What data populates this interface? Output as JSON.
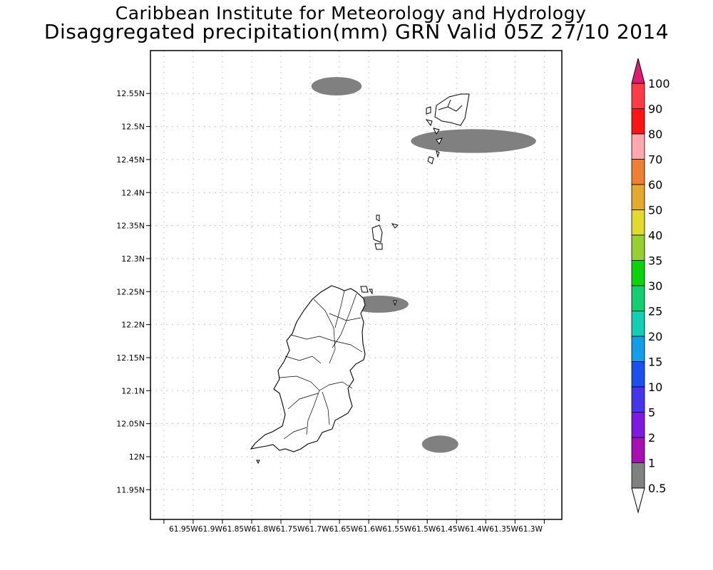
{
  "title_line1": "Caribbean Institute for Meteorology and Hydrology",
  "title_line2": "Disaggregated precipitation(mm) GRN Valid 05Z 27/10 2014",
  "map": {
    "lat_labels": [
      "12.55N",
      "12.5N",
      "12.45N",
      "12.4N",
      "12.35N",
      "12.3N",
      "12.25N",
      "12.2N",
      "12.15N",
      "12.1N",
      "12.05N",
      "12N",
      "11.95N"
    ],
    "lat_values": [
      12.55,
      12.5,
      12.45,
      12.4,
      12.35,
      12.3,
      12.25,
      12.2,
      12.15,
      12.1,
      12.05,
      12.0,
      11.95
    ],
    "lon_labels_text": "61.95W61.9W61.85W61.8W61.75W61.7W61.65W61.6W61.55W61.5W61.45W61.4W61.35W61.3W",
    "lon_values": [
      -61.95,
      -61.9,
      -61.85,
      -61.8,
      -61.75,
      -61.7,
      -61.65,
      -61.6,
      -61.55,
      -61.5,
      -61.45,
      -61.4,
      -61.35,
      -61.3
    ],
    "lon_range": [
      -61.973,
      -61.27
    ],
    "lat_range": [
      11.905,
      12.615
    ],
    "grid": true,
    "land_color": "#ffffff",
    "coast_color": "#000000",
    "precip_areas": [
      {
        "name": "north-cloud",
        "lon": -61.655,
        "lat": 12.561,
        "lon_radius": 0.043,
        "lat_radius": 0.014,
        "class": "0.5-1"
      },
      {
        "name": "carriacou-band",
        "lon": -61.421,
        "lat": 12.478,
        "lon_radius": 0.107,
        "lat_radius": 0.018,
        "class": "0.5-1"
      },
      {
        "name": "grenada-ne-patch",
        "lon": -61.583,
        "lat": 12.231,
        "lon_radius": 0.051,
        "lat_radius": 0.013,
        "class": "0.5-1"
      },
      {
        "name": "southeast-patch",
        "lon": -61.478,
        "lat": 12.019,
        "lon_radius": 0.031,
        "lat_radius": 0.013,
        "class": "0.5-1"
      }
    ]
  },
  "colorbar": {
    "labels": [
      "100",
      "90",
      "80",
      "70",
      "60",
      "50",
      "40",
      "35",
      "30",
      "25",
      "20",
      "15",
      "10",
      "5",
      "2",
      "1",
      "0.5"
    ],
    "colors": [
      "#ff3b45",
      "#ff1414",
      "#ffa8b0",
      "#ee7f33",
      "#e4a92d",
      "#e3da2e",
      "#97d12f",
      "#0cd40c",
      "#12cf72",
      "#10cfb2",
      "#129ee8",
      "#1a50f0",
      "#4535ec",
      "#7e18e2",
      "#a70fb5",
      "#808080"
    ],
    "top_arrow_color": "#e01a6e",
    "bottom_arrow_color": "#ffffff"
  }
}
